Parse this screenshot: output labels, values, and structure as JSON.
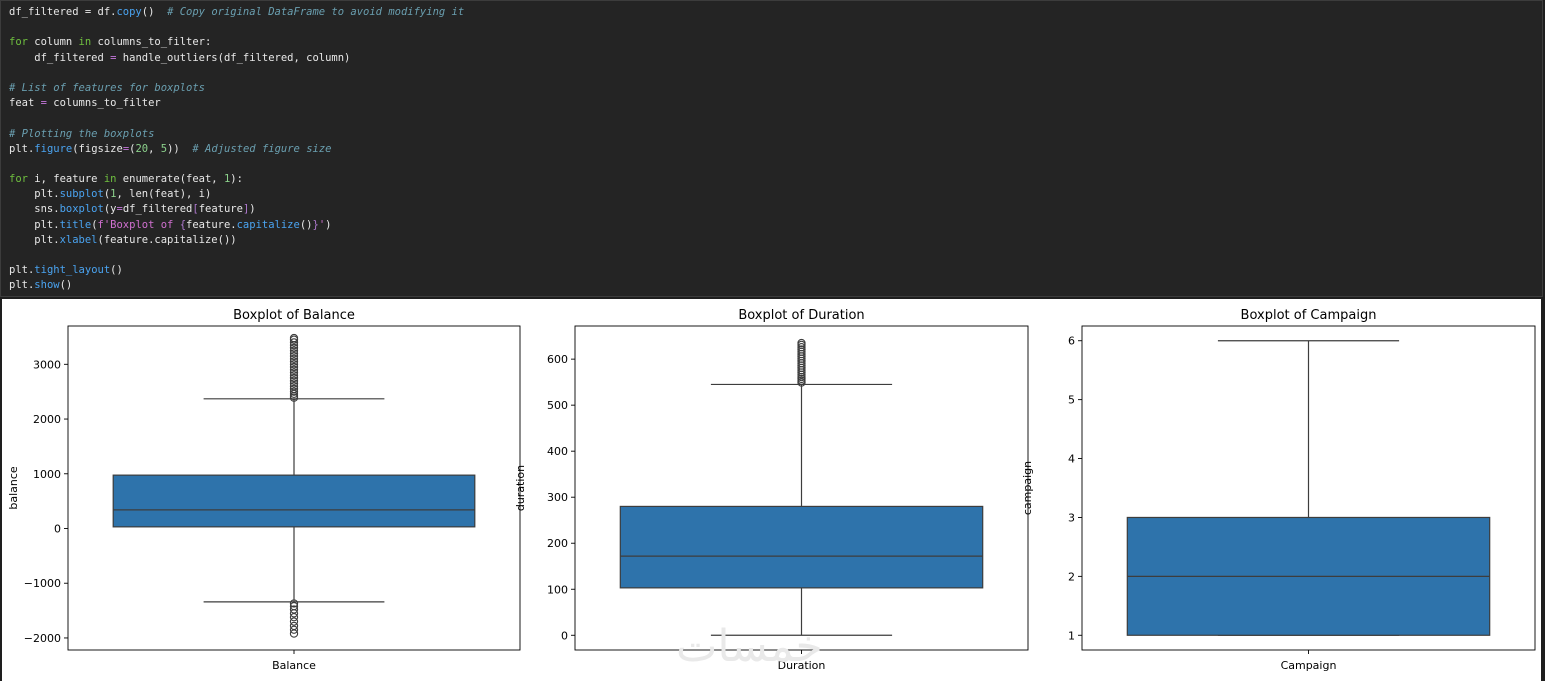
{
  "code": {
    "lines": [
      [
        {
          "t": "df_filtered = df.",
          "c": ""
        },
        {
          "t": "copy",
          "c": "fn"
        },
        {
          "t": "()  ",
          "c": ""
        },
        {
          "t": "# Copy original DataFrame to avoid modifying it",
          "c": "cm"
        }
      ],
      [],
      [
        {
          "t": "for",
          "c": "kw"
        },
        {
          "t": " column ",
          "c": ""
        },
        {
          "t": "in",
          "c": "kw"
        },
        {
          "t": " columns_to_filter:",
          "c": ""
        }
      ],
      [
        {
          "t": "    df_filtered ",
          "c": ""
        },
        {
          "t": "=",
          "c": "op"
        },
        {
          "t": " handle_outliers(df_filtered, column)",
          "c": ""
        }
      ],
      [],
      [
        {
          "t": "# List of features for boxplots",
          "c": "cm"
        }
      ],
      [
        {
          "t": "feat ",
          "c": ""
        },
        {
          "t": "=",
          "c": "op"
        },
        {
          "t": " columns_to_filter",
          "c": ""
        }
      ],
      [],
      [
        {
          "t": "# Plotting the boxplots",
          "c": "cm"
        }
      ],
      [
        {
          "t": "plt.",
          "c": ""
        },
        {
          "t": "figure",
          "c": "fn"
        },
        {
          "t": "(figsize",
          "c": ""
        },
        {
          "t": "=",
          "c": "op"
        },
        {
          "t": "(",
          "c": ""
        },
        {
          "t": "20",
          "c": "nm"
        },
        {
          "t": ", ",
          "c": ""
        },
        {
          "t": "5",
          "c": "nm"
        },
        {
          "t": "))  ",
          "c": ""
        },
        {
          "t": "# Adjusted figure size",
          "c": "cm"
        }
      ],
      [],
      [
        {
          "t": "for",
          "c": "kw"
        },
        {
          "t": " i, feature ",
          "c": ""
        },
        {
          "t": "in",
          "c": "kw"
        },
        {
          "t": " enumerate(feat, ",
          "c": ""
        },
        {
          "t": "1",
          "c": "nm"
        },
        {
          "t": "):",
          "c": ""
        }
      ],
      [
        {
          "t": "    plt.",
          "c": ""
        },
        {
          "t": "subplot",
          "c": "fn"
        },
        {
          "t": "(",
          "c": ""
        },
        {
          "t": "1",
          "c": "nm"
        },
        {
          "t": ", len(feat), i)",
          "c": ""
        }
      ],
      [
        {
          "t": "    sns.",
          "c": ""
        },
        {
          "t": "boxplot",
          "c": "fn"
        },
        {
          "t": "(y",
          "c": ""
        },
        {
          "t": "=",
          "c": "op"
        },
        {
          "t": "df_filtered",
          "c": ""
        },
        {
          "t": "[",
          "c": "br"
        },
        {
          "t": "feature",
          "c": ""
        },
        {
          "t": "]",
          "c": "br"
        },
        {
          "t": ")",
          "c": ""
        }
      ],
      [
        {
          "t": "    plt.",
          "c": ""
        },
        {
          "t": "title",
          "c": "fn"
        },
        {
          "t": "(",
          "c": ""
        },
        {
          "t": "f'Boxplot of ",
          "c": "st"
        },
        {
          "t": "{",
          "c": "br"
        },
        {
          "t": "feature.",
          "c": ""
        },
        {
          "t": "capitalize",
          "c": "fn"
        },
        {
          "t": "()",
          "c": ""
        },
        {
          "t": "}",
          "c": "br"
        },
        {
          "t": "'",
          "c": "st"
        },
        {
          "t": ")",
          "c": ""
        }
      ],
      [
        {
          "t": "    plt.",
          "c": ""
        },
        {
          "t": "xlabel",
          "c": "fn"
        },
        {
          "t": "(feature.capitalize())",
          "c": ""
        }
      ],
      [],
      [
        {
          "t": "plt.",
          "c": ""
        },
        {
          "t": "tight_layout",
          "c": "fn"
        },
        {
          "t": "()",
          "c": ""
        }
      ],
      [
        {
          "t": "plt.",
          "c": ""
        },
        {
          "t": "show",
          "c": "fn"
        },
        {
          "t": "()",
          "c": ""
        }
      ]
    ]
  },
  "colors": {
    "box_fill": "#2e73ab",
    "line": "#3d3d3d",
    "axes": "#000000"
  },
  "watermark": "خمسات",
  "chart_data": [
    {
      "type": "box",
      "title": "Boxplot of Balance",
      "xlabel": "Balance",
      "ylabel": "balance",
      "ylim": [
        -2220,
        3700
      ],
      "yticks": [
        -2000,
        -1000,
        0,
        1000,
        2000,
        3000
      ],
      "ytick_labels": [
        "−2000",
        "−1000",
        "0",
        "1000",
        "2000",
        "3000"
      ],
      "whisker_low": -1340,
      "q1": 30,
      "median": 340,
      "q3": 975,
      "whisker_high": 2370,
      "outliers_high": [
        2390,
        2420,
        2460,
        2500,
        2550,
        2600,
        2650,
        2700,
        2750,
        2800,
        2850,
        2900,
        2950,
        3000,
        3050,
        3100,
        3150,
        3200,
        3250,
        3300,
        3350,
        3400,
        3450,
        3480
      ],
      "outliers_low": [
        -1370,
        -1420,
        -1480,
        -1550,
        -1620,
        -1700,
        -1780,
        -1850,
        -1920
      ]
    },
    {
      "type": "box",
      "title": "Boxplot of Duration",
      "xlabel": "Duration",
      "ylabel": "duration",
      "ylim": [
        -32,
        672
      ],
      "yticks": [
        0,
        100,
        200,
        300,
        400,
        500,
        600
      ],
      "ytick_labels": [
        "0",
        "100",
        "200",
        "300",
        "400",
        "500",
        "600"
      ],
      "whisker_low": 0,
      "q1": 103,
      "median": 172,
      "q3": 280,
      "whisker_high": 545,
      "outliers_high": [
        549,
        553,
        557,
        561,
        566,
        571,
        576,
        581,
        586,
        591,
        596,
        601,
        606,
        611,
        616,
        621,
        626,
        631,
        635
      ],
      "outliers_low": []
    },
    {
      "type": "box",
      "title": "Boxplot of Campaign",
      "xlabel": "Campaign",
      "ylabel": "campaign",
      "ylim": [
        0.75,
        6.25
      ],
      "yticks": [
        1,
        2,
        3,
        4,
        5,
        6
      ],
      "ytick_labels": [
        "1",
        "2",
        "3",
        "4",
        "5",
        "6"
      ],
      "whisker_low": 1,
      "q1": 1,
      "median": 2,
      "q3": 3,
      "whisker_high": 6,
      "outliers_high": [],
      "outliers_low": []
    }
  ]
}
